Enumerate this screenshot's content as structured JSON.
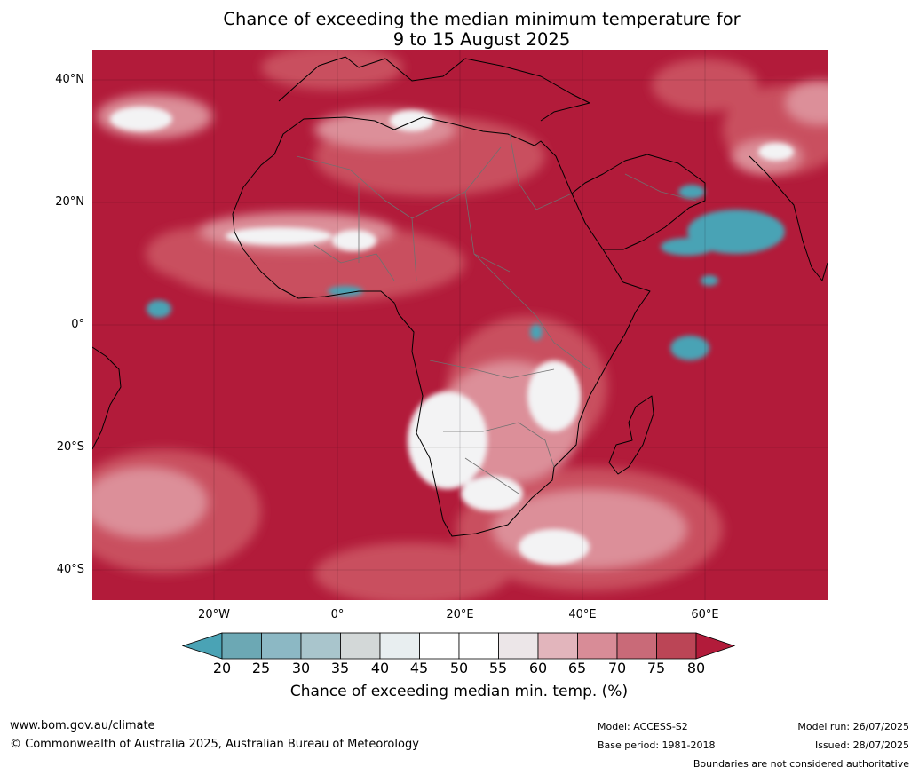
{
  "title_line1": "Chance of exceeding the median minimum temperature for",
  "title_line2": "9 to 15 August 2025",
  "lat_labels": [
    "40°N",
    "20°N",
    "0°",
    "20°S",
    "40°S"
  ],
  "lon_labels": [
    "20°W",
    "0°",
    "20°E",
    "40°E",
    "60°E"
  ],
  "colorbar": {
    "ticks": [
      "20",
      "25",
      "30",
      "35",
      "40",
      "45",
      "50",
      "55",
      "60",
      "65",
      "70",
      "75",
      "80"
    ],
    "colors": [
      "#6ca8b4",
      "#8cb8c4",
      "#a9c5cc",
      "#d3d8d8",
      "#e8eef0",
      "#ffffff",
      "#ffffff",
      "#ece6e8",
      "#e2b5bc",
      "#d88c97",
      "#c96a78",
      "#bb4556"
    ],
    "under_color": "#4aa3b5",
    "over_color": "#b21b3a",
    "title": "Chance of exceeding median min. temp. (%)"
  },
  "colors": {
    "warm_dark": "#b21b3a",
    "warm_mid": "#c9505f",
    "warm_light": "#dc8f99",
    "neutral": "#f3f3f4",
    "cool": "#4aa3b5"
  },
  "footer": {
    "website": "www.bom.gov.au/climate",
    "copyright": "© Commonwealth of Australia 2025, Australian Bureau of Meteorology",
    "model": "Model: ACCESS-S2",
    "base_period": "Base period: 1981-2018",
    "model_run": "Model run: 26/07/2025",
    "issued": "Issued: 28/07/2025",
    "disclaimer": "Boundaries are not considered authoritative"
  }
}
